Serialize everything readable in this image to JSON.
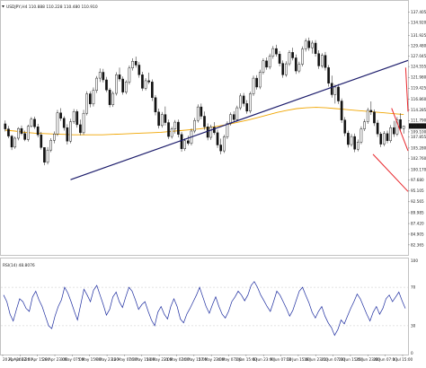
{
  "window": {
    "symbol_header": "USDJPY,H4  110.888 110.228 110.480 110.910",
    "indicator_header": "RSI(14) 48.8076",
    "price_badge": "110.480"
  },
  "colors": {
    "candle_bull": "#ffffff",
    "candle_bear": "#111111",
    "candle_outline": "#111111",
    "moving_average": "#f0a500",
    "regression_channel": "#e8252a",
    "trendline": "#1c1c6b",
    "rsi_line": "#1a2a9e",
    "price_badge_bg": "#111111",
    "price_badge_text": "#ffffff"
  },
  "chart_data": [
    {
      "type": "candlestick",
      "title": "USDJPY,H4  110.888 110.228 110.480 110.910",
      "y_ticks": [
        "140.075",
        "137.405",
        "134.920",
        "131.925",
        "129.480",
        "127.045",
        "124.555",
        "121.980",
        "119.425",
        "116.860",
        "114.285",
        "111.790",
        "109.100",
        "107.855",
        "105.280",
        "102.760",
        "100.170",
        "97.680",
        "95.105",
        "92.565",
        "89.985",
        "87.420",
        "84.905",
        "82.365",
        "80.000"
      ],
      "ylim": [
        80.0,
        140.075
      ],
      "x_ticks": [
        "20 Apr 2022",
        "21 Apr 07:00",
        "26 Apr 15:00",
        "28 Apr 23:00",
        "3 May 07:00",
        "5 May 15:00",
        "9 May 23:00",
        "12 May 07:00",
        "16 May 15:00",
        "18 May 23:00",
        "21 May 07:00",
        "24 May 15:00",
        "27 May 23:00",
        "30 May 07:00",
        "2 Jun 15:00",
        "6 Jun 23:00",
        "9 Jun 07:00",
        "13 Jun 15:00",
        "16 Jun 23:00",
        "21 Jun 07:00",
        "23 Jun 15:00",
        "25 Jun 23:00",
        "28 Jun 07:00",
        "1 Jul 15:00"
      ],
      "current_price": 110.48,
      "moving_average": [
        109.5,
        109.3,
        109.0,
        108.8,
        108.7,
        108.6,
        108.5,
        108.4,
        108.4,
        108.4,
        108.4,
        108.5,
        108.6,
        108.7,
        108.8,
        108.9,
        109.0,
        109.2,
        109.4,
        109.6,
        109.8,
        110.1,
        110.5,
        110.9,
        111.4,
        111.9,
        112.5,
        113.1,
        113.7,
        114.2,
        114.6,
        114.8,
        114.9,
        114.8,
        114.6,
        114.4,
        114.2,
        114.0,
        113.8,
        113.6,
        113.4,
        113.2
      ],
      "ohlc": [
        [
          111.0,
          111.8,
          109.2,
          109.8
        ],
        [
          109.8,
          110.5,
          107.6,
          108.1
        ],
        [
          108.1,
          108.4,
          104.8,
          105.5
        ],
        [
          105.5,
          108.0,
          105.1,
          107.6
        ],
        [
          107.6,
          110.2,
          107.1,
          109.9
        ],
        [
          109.9,
          110.6,
          108.3,
          108.7
        ],
        [
          108.7,
          109.4,
          106.9,
          107.3
        ],
        [
          107.3,
          110.8,
          106.8,
          110.4
        ],
        [
          110.4,
          112.6,
          110.1,
          112.1
        ],
        [
          112.1,
          112.7,
          109.8,
          110.3
        ],
        [
          110.3,
          111.0,
          107.8,
          108.4
        ],
        [
          108.4,
          109.1,
          104.9,
          105.4
        ],
        [
          105.4,
          104.9,
          101.2,
          101.9
        ],
        [
          101.9,
          105.5,
          101.4,
          104.8
        ],
        [
          104.8,
          107.6,
          104.3,
          107.1
        ],
        [
          107.1,
          109.2,
          106.4,
          108.6
        ],
        [
          108.6,
          114.3,
          108.1,
          113.6
        ],
        [
          113.6,
          114.7,
          111.7,
          112.3
        ],
        [
          112.3,
          112.8,
          109.4,
          110.1
        ],
        [
          110.1,
          110.9,
          106.1,
          106.9
        ],
        [
          106.9,
          112.2,
          106.4,
          111.5
        ],
        [
          111.5,
          114.5,
          111.0,
          113.9
        ],
        [
          113.9,
          114.4,
          110.1,
          110.8
        ],
        [
          110.8,
          112.0,
          108.3,
          108.9
        ],
        [
          108.9,
          114.3,
          108.4,
          113.5
        ],
        [
          113.5,
          118.7,
          113.0,
          118.1
        ],
        [
          118.1,
          118.7,
          114.9,
          115.7
        ],
        [
          115.7,
          119.6,
          115.1,
          118.9
        ],
        [
          118.9,
          122.3,
          118.3,
          121.8
        ],
        [
          121.8,
          124.1,
          120.9,
          123.2
        ],
        [
          123.2,
          124.0,
          120.8,
          121.4
        ],
        [
          121.4,
          122.1,
          118.5,
          119.0
        ],
        [
          119.0,
          119.5,
          114.9,
          115.5
        ],
        [
          115.5,
          118.7,
          115.0,
          118.2
        ],
        [
          118.2,
          123.2,
          117.7,
          122.6
        ],
        [
          122.6,
          124.3,
          121.0,
          121.6
        ],
        [
          121.6,
          122.2,
          117.9,
          118.5
        ],
        [
          118.5,
          121.3,
          118.0,
          120.9
        ],
        [
          120.9,
          124.8,
          120.3,
          124.2
        ],
        [
          124.2,
          126.5,
          123.6,
          125.8
        ],
        [
          125.8,
          126.9,
          124.3,
          124.9
        ],
        [
          124.9,
          125.6,
          121.9,
          122.6
        ],
        [
          122.6,
          123.3,
          118.8,
          119.4
        ],
        [
          119.4,
          121.8,
          118.9,
          121.2
        ],
        [
          121.2,
          123.1,
          120.4,
          120.9
        ],
        [
          120.9,
          121.5,
          116.4,
          117.2
        ],
        [
          117.2,
          117.8,
          113.0,
          113.8
        ],
        [
          113.8,
          114.6,
          109.9,
          110.6
        ],
        [
          110.6,
          113.8,
          110.1,
          113.2
        ],
        [
          113.2,
          115.1,
          110.6,
          111.3
        ],
        [
          111.3,
          112.0,
          107.4,
          108.0
        ],
        [
          108.0,
          110.3,
          107.5,
          109.8
        ],
        [
          109.8,
          111.9,
          108.7,
          111.4
        ],
        [
          111.4,
          112.0,
          107.8,
          108.5
        ],
        [
          108.5,
          109.1,
          104.4,
          105.1
        ],
        [
          105.1,
          107.6,
          104.6,
          107.0
        ],
        [
          107.0,
          108.2,
          105.9,
          106.4
        ],
        [
          106.4,
          109.9,
          105.9,
          109.3
        ],
        [
          109.3,
          112.4,
          108.8,
          111.8
        ],
        [
          111.8,
          115.6,
          111.3,
          115.0
        ],
        [
          115.0,
          115.8,
          112.1,
          112.8
        ],
        [
          112.8,
          113.9,
          109.6,
          110.3
        ],
        [
          110.3,
          111.1,
          107.1,
          107.8
        ],
        [
          107.8,
          110.8,
          107.2,
          110.2
        ],
        [
          110.2,
          111.4,
          108.4,
          108.9
        ],
        [
          108.9,
          109.6,
          105.3,
          106.0
        ],
        [
          106.0,
          107.5,
          103.8,
          104.6
        ],
        [
          104.6,
          108.4,
          104.1,
          107.9
        ],
        [
          107.9,
          111.6,
          107.4,
          111.1
        ],
        [
          111.1,
          113.7,
          110.6,
          113.2
        ],
        [
          113.2,
          114.0,
          111.4,
          112.0
        ],
        [
          112.0,
          115.3,
          111.5,
          114.8
        ],
        [
          114.8,
          118.2,
          114.3,
          117.6
        ],
        [
          117.6,
          118.3,
          115.1,
          115.8
        ],
        [
          115.8,
          116.6,
          113.4,
          114.0
        ],
        [
          114.0,
          118.6,
          113.5,
          118.1
        ],
        [
          118.1,
          122.4,
          117.6,
          121.8
        ],
        [
          121.8,
          122.5,
          119.1,
          119.7
        ],
        [
          119.7,
          123.8,
          119.2,
          123.2
        ],
        [
          123.2,
          126.5,
          122.7,
          125.9
        ],
        [
          125.9,
          126.7,
          123.8,
          124.4
        ],
        [
          124.4,
          127.6,
          123.9,
          127.0
        ],
        [
          127.0,
          129.4,
          126.4,
          128.8
        ],
        [
          128.8,
          129.7,
          126.9,
          127.5
        ],
        [
          127.5,
          128.2,
          124.6,
          125.3
        ],
        [
          125.3,
          126.0,
          121.9,
          122.6
        ],
        [
          122.6,
          125.8,
          122.1,
          125.2
        ],
        [
          125.2,
          128.4,
          124.7,
          127.9
        ],
        [
          127.9,
          129.0,
          126.0,
          126.6
        ],
        [
          126.6,
          127.4,
          122.8,
          123.5
        ],
        [
          123.5,
          125.7,
          123.0,
          125.1
        ],
        [
          125.1,
          129.3,
          124.6,
          128.7
        ],
        [
          128.7,
          131.2,
          128.1,
          130.6
        ],
        [
          130.6,
          131.4,
          128.3,
          129.0
        ],
        [
          129.0,
          130.7,
          127.6,
          130.1
        ],
        [
          130.1,
          130.8,
          126.9,
          127.6
        ],
        [
          127.6,
          128.4,
          124.0,
          124.7
        ],
        [
          124.7,
          127.7,
          124.2,
          127.2
        ],
        [
          127.2,
          128.0,
          123.6,
          124.3
        ],
        [
          124.3,
          124.9,
          119.8,
          120.6
        ],
        [
          120.6,
          122.4,
          117.2,
          117.9
        ],
        [
          117.9,
          120.3,
          115.8,
          119.7
        ],
        [
          119.7,
          120.4,
          115.7,
          116.4
        ],
        [
          116.4,
          117.0,
          111.2,
          111.9
        ],
        [
          111.9,
          112.6,
          108.1,
          108.8
        ],
        [
          108.8,
          109.4,
          105.4,
          106.1
        ],
        [
          106.1,
          108.6,
          105.6,
          108.0
        ],
        [
          108.0,
          108.7,
          104.3,
          105.0
        ],
        [
          105.0,
          107.3,
          104.5,
          106.7
        ],
        [
          106.7,
          110.4,
          106.2,
          109.8
        ],
        [
          109.8,
          112.1,
          109.3,
          111.5
        ],
        [
          111.5,
          114.8,
          111.0,
          114.2
        ],
        [
          114.2,
          116.3,
          113.1,
          113.8
        ],
        [
          113.8,
          114.4,
          110.5,
          111.2
        ],
        [
          111.2,
          111.9,
          107.9,
          108.6
        ],
        [
          108.6,
          109.1,
          105.5,
          106.2
        ],
        [
          106.2,
          109.3,
          105.7,
          108.7
        ],
        [
          108.7,
          109.4,
          106.4,
          107.0
        ],
        [
          107.0,
          110.7,
          106.5,
          110.1
        ],
        [
          110.1,
          111.7,
          107.9,
          108.6
        ],
        [
          108.6,
          112.6,
          108.1,
          112.0
        ],
        [
          112.0,
          113.5,
          109.3,
          109.9
        ],
        [
          109.9,
          110.6,
          108.7,
          110.48
        ]
      ],
      "regression_channel": {
        "upper": [
          [
            122.6,
            124.3
          ],
          [
            147.0,
            113.9
          ]
        ],
        "middle": [
          [
            118.3,
            114.7
          ],
          [
            147.0,
            104.6
          ]
        ],
        "lower": [
          [
            112.6,
            103.8
          ],
          [
            147.0,
            95.0
          ]
        ]
      },
      "trendline": [
        [
          20,
          97.8
        ],
        [
          147.0,
          126.0
        ]
      ]
    },
    {
      "type": "line",
      "title": "RSI(14) 48.8076",
      "ylim": [
        0,
        100
      ],
      "y_ticks": [
        "100",
        "70",
        "30",
        "0"
      ],
      "values": [
        62,
        55,
        42,
        35,
        47,
        58,
        55,
        48,
        45,
        60,
        66,
        57,
        50,
        40,
        30,
        27,
        40,
        50,
        57,
        70,
        64,
        55,
        45,
        36,
        52,
        68,
        62,
        55,
        67,
        72,
        62,
        52,
        41,
        47,
        60,
        65,
        55,
        49,
        60,
        70,
        66,
        57,
        47,
        52,
        55,
        45,
        36,
        30,
        44,
        50,
        42,
        37,
        50,
        58,
        50,
        37,
        33,
        42,
        48,
        55,
        62,
        70,
        60,
        50,
        43,
        52,
        60,
        50,
        42,
        38,
        45,
        55,
        60,
        66,
        62,
        56,
        62,
        72,
        76,
        70,
        62,
        56,
        50,
        45,
        55,
        66,
        62,
        55,
        48,
        40,
        46,
        56,
        66,
        70,
        62,
        54,
        44,
        38,
        45,
        50,
        40,
        33,
        28,
        20,
        26,
        36,
        32,
        40,
        48,
        55,
        63,
        58,
        50,
        42,
        35,
        44,
        50,
        42,
        48,
        58,
        62,
        55,
        60,
        65,
        56,
        48
      ]
    }
  ]
}
